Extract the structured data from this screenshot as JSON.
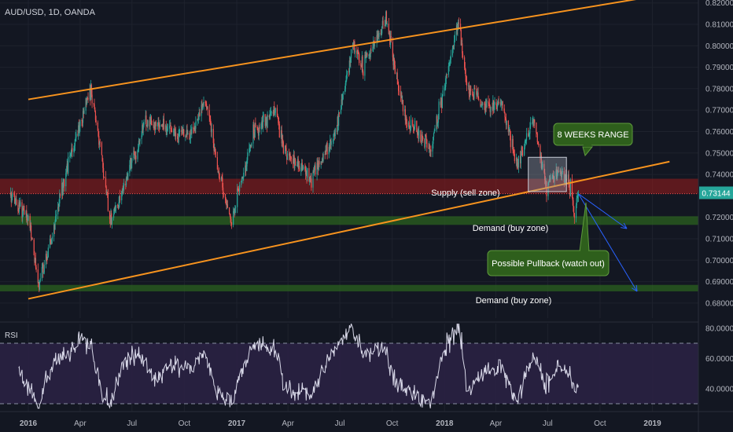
{
  "chart_data": {
    "type": "candlestick",
    "title": "AUD/USD, 1D, OANDA",
    "price_axis": {
      "ylim": [
        0.6758,
        0.8222
      ],
      "ticks": [
        0.82,
        0.81,
        0.8,
        0.79,
        0.78,
        0.77,
        0.76,
        0.75,
        0.74,
        0.72,
        0.71,
        0.7,
        0.69,
        0.68
      ],
      "tick_labels": [
        "0.82000",
        "0.81000",
        "0.80000",
        "0.79000",
        "0.78000",
        "0.77000",
        "0.76000",
        "0.75000",
        "0.74000",
        "0.72000",
        "0.71000",
        "0.70000",
        "0.69000",
        "0.68000"
      ]
    },
    "last_price": {
      "value": 0.73144,
      "label": "0.73144",
      "color": "#26a69a"
    },
    "time_axis": {
      "labels": [
        "2016",
        "Apr",
        "Jul",
        "Oct",
        "2017",
        "Apr",
        "Jul",
        "Oct",
        "2018",
        "Apr",
        "Jul",
        "Oct",
        "2019"
      ]
    },
    "price_path": [
      [
        "2015-12-01",
        0.73
      ],
      [
        "2016-01-01",
        0.72
      ],
      [
        "2016-01-20",
        0.688
      ],
      [
        "2016-02-15",
        0.715
      ],
      [
        "2016-03-10",
        0.745
      ],
      [
        "2016-04-20",
        0.78
      ],
      [
        "2016-05-10",
        0.745
      ],
      [
        "2016-05-24",
        0.718
      ],
      [
        "2016-07-01",
        0.745
      ],
      [
        "2016-07-25",
        0.765
      ],
      [
        "2016-09-05",
        0.76
      ],
      [
        "2016-10-10",
        0.758
      ],
      [
        "2016-11-08",
        0.775
      ],
      [
        "2016-12-01",
        0.74
      ],
      [
        "2016-12-23",
        0.718
      ],
      [
        "2017-01-31",
        0.76
      ],
      [
        "2017-03-10",
        0.77
      ],
      [
        "2017-03-24",
        0.752
      ],
      [
        "2017-05-09",
        0.738
      ],
      [
        "2017-06-20",
        0.756
      ],
      [
        "2017-07-25",
        0.8
      ],
      [
        "2017-08-10",
        0.79
      ],
      [
        "2017-09-20",
        0.812
      ],
      [
        "2017-10-25",
        0.765
      ],
      [
        "2017-12-08",
        0.752
      ],
      [
        "2018-01-26",
        0.812
      ],
      [
        "2018-02-09",
        0.78
      ],
      [
        "2018-03-20",
        0.77
      ],
      [
        "2018-04-10",
        0.775
      ],
      [
        "2018-05-09",
        0.744
      ],
      [
        "2018-06-06",
        0.766
      ],
      [
        "2018-06-28",
        0.734
      ],
      [
        "2018-07-20",
        0.742
      ],
      [
        "2018-08-10",
        0.735
      ],
      [
        "2018-08-17",
        0.72
      ],
      [
        "2018-08-24",
        0.731
      ]
    ],
    "channel_lines": [
      {
        "from": [
          "2016-01-01",
          0.775
        ],
        "to": [
          "2018-12-10",
          0.822
        ],
        "color": "#f7931e"
      },
      {
        "from": [
          "2016-01-01",
          0.682
        ],
        "to": [
          "2019-01-31",
          0.746
        ],
        "color": "#f7931e"
      }
    ],
    "zones": [
      {
        "label": "Supply (sell zone)",
        "low": 0.731,
        "high": 0.738,
        "color": "#9b1c1c"
      },
      {
        "label": "Demand (buy zone)",
        "low": 0.7165,
        "high": 0.7205,
        "color": "#2e6b1e"
      },
      {
        "label": "Demand (buy zone)",
        "low": 0.6855,
        "high": 0.6885,
        "color": "#2e6b1e"
      }
    ],
    "range_box": {
      "from": "2018-05-28",
      "to": "2018-08-03",
      "low": 0.732,
      "high": 0.748
    },
    "callouts": [
      {
        "text": "8 WEEKS RANGE"
      },
      {
        "text": "Possible Pullback (watch out)"
      }
    ],
    "rsi": {
      "label": "RSI",
      "ylim": [
        25,
        83
      ],
      "levels": [
        70,
        30
      ],
      "ticks": [
        80,
        60,
        40
      ],
      "tick_labels": [
        "80.0000",
        "60.0000",
        "40.0000"
      ],
      "line_color": "#d8d8e8",
      "band_color": "#2a2142",
      "path": [
        [
          "2015-12-15",
          55
        ],
        [
          "2016-01-05",
          38
        ],
        [
          "2016-01-20",
          28
        ],
        [
          "2016-02-10",
          55
        ],
        [
          "2016-03-10",
          65
        ],
        [
          "2016-04-01",
          72
        ],
        [
          "2016-04-20",
          68
        ],
        [
          "2016-05-10",
          35
        ],
        [
          "2016-05-24",
          30
        ],
        [
          "2016-06-15",
          55
        ],
        [
          "2016-07-10",
          65
        ],
        [
          "2016-08-10",
          48
        ],
        [
          "2016-09-05",
          55
        ],
        [
          "2016-10-10",
          52
        ],
        [
          "2016-11-08",
          62
        ],
        [
          "2016-11-25",
          38
        ],
        [
          "2016-12-23",
          30
        ],
        [
          "2017-01-20",
          62
        ],
        [
          "2017-02-10",
          70
        ],
        [
          "2017-03-10",
          65
        ],
        [
          "2017-03-28",
          40
        ],
        [
          "2017-05-09",
          35
        ],
        [
          "2017-06-10",
          58
        ],
        [
          "2017-07-20",
          80
        ],
        [
          "2017-08-10",
          62
        ],
        [
          "2017-09-15",
          68
        ],
        [
          "2017-10-10",
          42
        ],
        [
          "2017-11-20",
          35
        ],
        [
          "2017-12-08",
          32
        ],
        [
          "2018-01-05",
          72
        ],
        [
          "2018-01-26",
          82
        ],
        [
          "2018-02-09",
          40
        ],
        [
          "2018-03-05",
          48
        ],
        [
          "2018-04-10",
          55
        ],
        [
          "2018-05-09",
          32
        ],
        [
          "2018-06-06",
          62
        ],
        [
          "2018-06-28",
          40
        ],
        [
          "2018-07-20",
          55
        ],
        [
          "2018-08-10",
          50
        ],
        [
          "2018-08-17",
          38
        ],
        [
          "2018-08-24",
          44
        ]
      ]
    }
  }
}
